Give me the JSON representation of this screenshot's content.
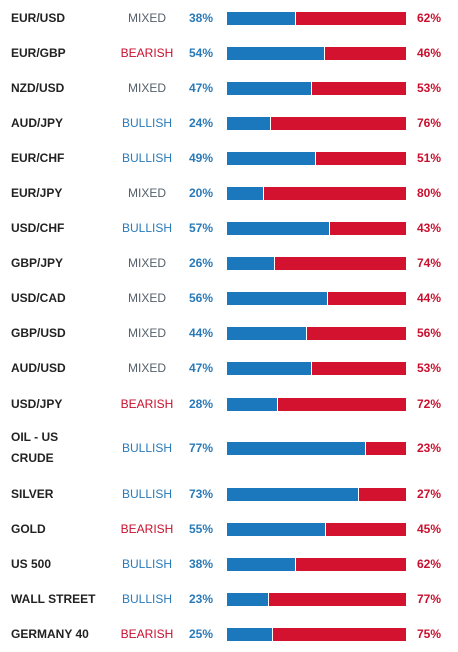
{
  "colors": {
    "long": "#1c78bd",
    "short": "#d2122e",
    "bullish_text": "#2a7ab8",
    "bearish_text": "#c8102e",
    "mixed_text": "#55606b"
  },
  "rows": [
    {
      "instrument": "EUR/USD",
      "bias": "MIXED",
      "long_pct": "38%",
      "long": 38,
      "short_pct": "62%"
    },
    {
      "instrument": "EUR/GBP",
      "bias": "BEARISH",
      "long_pct": "54%",
      "long": 54,
      "short_pct": "46%"
    },
    {
      "instrument": "NZD/USD",
      "bias": "MIXED",
      "long_pct": "47%",
      "long": 47,
      "short_pct": "53%"
    },
    {
      "instrument": "AUD/JPY",
      "bias": "BULLISH",
      "long_pct": "24%",
      "long": 24,
      "short_pct": "76%"
    },
    {
      "instrument": "EUR/CHF",
      "bias": "BULLISH",
      "long_pct": "49%",
      "long": 49,
      "short_pct": "51%"
    },
    {
      "instrument": "EUR/JPY",
      "bias": "MIXED",
      "long_pct": "20%",
      "long": 20,
      "short_pct": "80%"
    },
    {
      "instrument": "USD/CHF",
      "bias": "BULLISH",
      "long_pct": "57%",
      "long": 57,
      "short_pct": "43%"
    },
    {
      "instrument": "GBP/JPY",
      "bias": "MIXED",
      "long_pct": "26%",
      "long": 26,
      "short_pct": "74%"
    },
    {
      "instrument": "USD/CAD",
      "bias": "MIXED",
      "long_pct": "56%",
      "long": 56,
      "short_pct": "44%"
    },
    {
      "instrument": "GBP/USD",
      "bias": "MIXED",
      "long_pct": "44%",
      "long": 44,
      "short_pct": "56%"
    },
    {
      "instrument": "AUD/USD",
      "bias": "MIXED",
      "long_pct": "47%",
      "long": 47,
      "short_pct": "53%"
    },
    {
      "instrument": "USD/JPY",
      "bias": "BEARISH",
      "long_pct": "28%",
      "long": 28,
      "short_pct": "72%"
    },
    {
      "instrument": "OIL - US\nCRUDE",
      "bias": "BULLISH",
      "long_pct": "77%",
      "long": 77,
      "short_pct": "23%"
    },
    {
      "instrument": "SILVER",
      "bias": "BULLISH",
      "long_pct": "73%",
      "long": 73,
      "short_pct": "27%"
    },
    {
      "instrument": "GOLD",
      "bias": "BEARISH",
      "long_pct": "55%",
      "long": 55,
      "short_pct": "45%"
    },
    {
      "instrument": "US 500",
      "bias": "BULLISH",
      "long_pct": "38%",
      "long": 38,
      "short_pct": "62%"
    },
    {
      "instrument": "WALL STREET",
      "bias": "BULLISH",
      "long_pct": "23%",
      "long": 23,
      "short_pct": "77%"
    },
    {
      "instrument": "GERMANY 40",
      "bias": "BEARISH",
      "long_pct": "25%",
      "long": 25,
      "short_pct": "75%"
    }
  ]
}
